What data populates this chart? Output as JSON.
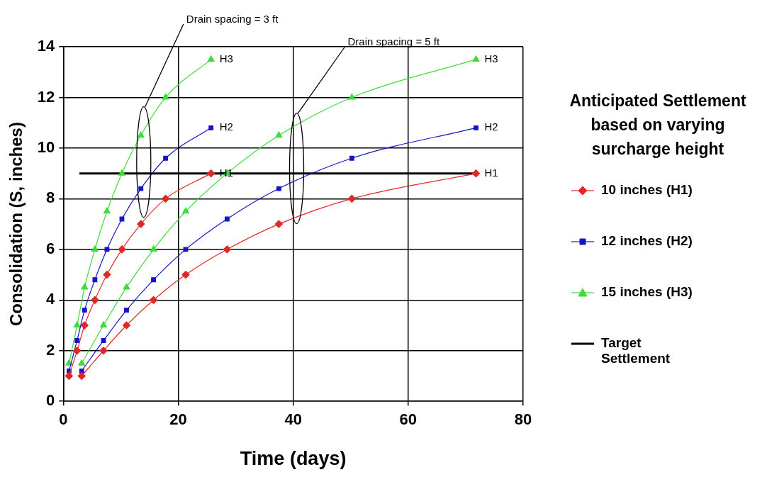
{
  "chart_data": {
    "type": "line",
    "xlabel": "Time (days)",
    "ylabel": "Consolidation (S, inches)",
    "legend_title": "Anticipated Settlement based on varying surcharge height",
    "legend": "right",
    "grid": true,
    "xlim": [
      0,
      80
    ],
    "xticks": [
      0,
      20,
      40,
      60,
      80
    ],
    "ylim": [
      0,
      14
    ],
    "yticks": [
      0,
      2,
      4,
      6,
      8,
      10,
      12,
      14
    ],
    "series": [
      {
        "name": "10 inches (H1)",
        "color": "#e02828",
        "marker": "diamond",
        "x": [
          1,
          2.4,
          3.7,
          5.5,
          7.6,
          10.2,
          13.5,
          17.8,
          25.7
        ],
        "values": [
          1,
          2,
          3,
          4,
          5,
          6,
          7,
          8,
          9
        ]
      },
      {
        "name": "12 inches (H2)",
        "color": "#1414c8",
        "marker": "square",
        "x": [
          1,
          2.4,
          3.7,
          5.5,
          7.6,
          10.2,
          13.5,
          17.8,
          25.7
        ],
        "values": [
          1.2,
          2.4,
          3.6,
          4.8,
          6,
          7.2,
          8.4,
          9.6,
          10.8
        ]
      },
      {
        "name": "15 inches (H3)",
        "color": "#3cdc3c",
        "marker": "triangle",
        "x": [
          1,
          2.4,
          3.7,
          5.5,
          7.6,
          10.2,
          13.5,
          17.8,
          25.7
        ],
        "values": [
          1.5,
          3,
          4.5,
          6,
          7.5,
          9,
          10.5,
          12,
          13.5
        ]
      },
      {
        "color": "#e02828",
        "marker": "diamond",
        "x": [
          3.2,
          7,
          11,
          15.7,
          21.3,
          28.5,
          37.5,
          50.2,
          71.8
        ],
        "values": [
          1,
          2,
          3,
          4,
          5,
          6,
          7,
          8,
          9
        ]
      },
      {
        "color": "#1414c8",
        "marker": "square",
        "x": [
          3.2,
          7,
          11,
          15.7,
          21.3,
          28.5,
          37.5,
          50.2,
          71.8
        ],
        "values": [
          1.2,
          2.4,
          3.6,
          4.8,
          6,
          7.2,
          8.4,
          9.6,
          10.8
        ]
      },
      {
        "color": "#3cdc3c",
        "marker": "triangle",
        "x": [
          3.2,
          7,
          11,
          15.7,
          21.3,
          28.5,
          37.5,
          50.2,
          71.8
        ],
        "values": [
          1.5,
          3,
          4.5,
          6,
          7.5,
          9,
          10.5,
          12,
          13.5
        ]
      },
      {
        "name": "Target Settlement",
        "color": "#000000",
        "marker": "none",
        "x": [
          2.8,
          71.8
        ],
        "values": [
          9,
          9
        ]
      }
    ],
    "annotations": [
      "H1",
      "H2",
      "H3",
      "H1",
      "H2",
      "H3",
      "Drain spacing = 3 ft",
      "Drain spacing = 5 ft"
    ]
  }
}
